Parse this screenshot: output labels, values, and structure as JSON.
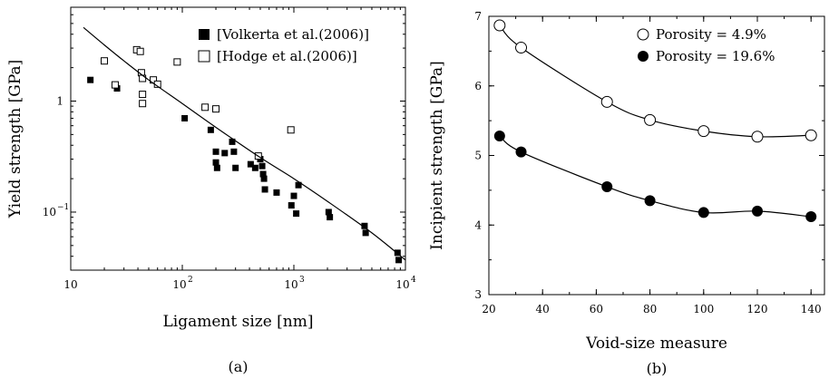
{
  "chart_data": [
    {
      "id": "a",
      "type": "scatter",
      "caption": "(a)",
      "xlabel": "Ligament size [nm]",
      "ylabel": "Yield strength [GPa]",
      "xscale": "log",
      "yscale": "log",
      "xlim": [
        10,
        10000
      ],
      "ylim": [
        0.03,
        7
      ],
      "xticks": [
        {
          "value": 10,
          "label": "10"
        },
        {
          "value": 100,
          "label": "10",
          "exp": "2"
        },
        {
          "value": 1000,
          "label": "10",
          "exp": "3"
        },
        {
          "value": 10000,
          "label": "10",
          "exp": "4"
        }
      ],
      "yticks": [
        {
          "value": 0.1,
          "label": "10",
          "exp": "−1"
        },
        {
          "value": 1,
          "label": "1"
        }
      ],
      "grid": false,
      "legend_position": "top-right",
      "series": [
        {
          "name": "[Volkerta et al.(2006)]",
          "marker": "filled-square",
          "color": "#000000",
          "points": [
            [
              15,
              1.55
            ],
            [
              26,
              1.3
            ],
            [
              105,
              0.7
            ],
            [
              180,
              0.55
            ],
            [
              200,
              0.35
            ],
            [
              200,
              0.28
            ],
            [
              205,
              0.25
            ],
            [
              240,
              0.34
            ],
            [
              280,
              0.43
            ],
            [
              290,
              0.35
            ],
            [
              300,
              0.25
            ],
            [
              410,
              0.27
            ],
            [
              450,
              0.25
            ],
            [
              500,
              0.3
            ],
            [
              520,
              0.26
            ],
            [
              530,
              0.22
            ],
            [
              540,
              0.2
            ],
            [
              550,
              0.16
            ],
            [
              700,
              0.15
            ],
            [
              950,
              0.115
            ],
            [
              1000,
              0.14
            ],
            [
              1050,
              0.097
            ],
            [
              1100,
              0.175
            ],
            [
              2050,
              0.1
            ],
            [
              2100,
              0.09
            ],
            [
              4300,
              0.075
            ],
            [
              4400,
              0.065
            ],
            [
              8500,
              0.043
            ],
            [
              8700,
              0.037
            ]
          ]
        },
        {
          "name": "[Hodge et al.(2006)]",
          "marker": "open-square",
          "color": "#000000",
          "points": [
            [
              20,
              2.3
            ],
            [
              25,
              1.4
            ],
            [
              39,
              2.9
            ],
            [
              42,
              2.8
            ],
            [
              43,
              1.8
            ],
            [
              44,
              1.6
            ],
            [
              44,
              1.15
            ],
            [
              44,
              0.95
            ],
            [
              55,
              1.55
            ],
            [
              60,
              1.42
            ],
            [
              90,
              2.25
            ],
            [
              160,
              0.88
            ],
            [
              200,
              0.85
            ],
            [
              480,
              0.32
            ],
            [
              940,
              0.55
            ]
          ]
        },
        {
          "name": "",
          "marker": "line",
          "color": "#000000",
          "points": [
            [
              13,
              4.6
            ],
            [
              20,
              3.2
            ],
            [
              30,
              2.3
            ],
            [
              50,
              1.55
            ],
            [
              100,
              0.95
            ],
            [
              200,
              0.58
            ],
            [
              500,
              0.31
            ],
            [
              1000,
              0.2
            ],
            [
              2000,
              0.125
            ],
            [
              5000,
              0.065
            ],
            [
              10000,
              0.037
            ]
          ]
        }
      ]
    },
    {
      "id": "b",
      "type": "line",
      "caption": "(b)",
      "xlabel": "Void-size measure",
      "ylabel": "Incipient strength [GPa]",
      "xlim": [
        20,
        145
      ],
      "ylim": [
        3,
        7
      ],
      "xticks": [
        {
          "value": 20,
          "label": "20"
        },
        {
          "value": 40,
          "label": "40"
        },
        {
          "value": 60,
          "label": "60"
        },
        {
          "value": 80,
          "label": "80"
        },
        {
          "value": 100,
          "label": "100"
        },
        {
          "value": 120,
          "label": "120"
        },
        {
          "value": 140,
          "label": "140"
        }
      ],
      "yticks": [
        {
          "value": 3,
          "label": "3"
        },
        {
          "value": 4,
          "label": "4"
        },
        {
          "value": 5,
          "label": "5"
        },
        {
          "value": 6,
          "label": "6"
        },
        {
          "value": 7,
          "label": "7"
        }
      ],
      "grid": false,
      "legend_position": "top-right",
      "series": [
        {
          "name": "Porosity = 4.9%",
          "marker": "open-circle",
          "color": "#000000",
          "x": [
            24,
            32,
            64,
            80,
            100,
            120,
            140
          ],
          "values": [
            6.87,
            6.55,
            5.77,
            5.51,
            5.35,
            5.27,
            5.29
          ]
        },
        {
          "name": "Porosity = 19.6%",
          "marker": "filled-circle",
          "color": "#000000",
          "x": [
            24,
            32,
            64,
            80,
            100,
            120,
            140
          ],
          "values": [
            5.28,
            5.05,
            4.55,
            4.35,
            4.18,
            4.2,
            4.12
          ]
        }
      ]
    }
  ]
}
